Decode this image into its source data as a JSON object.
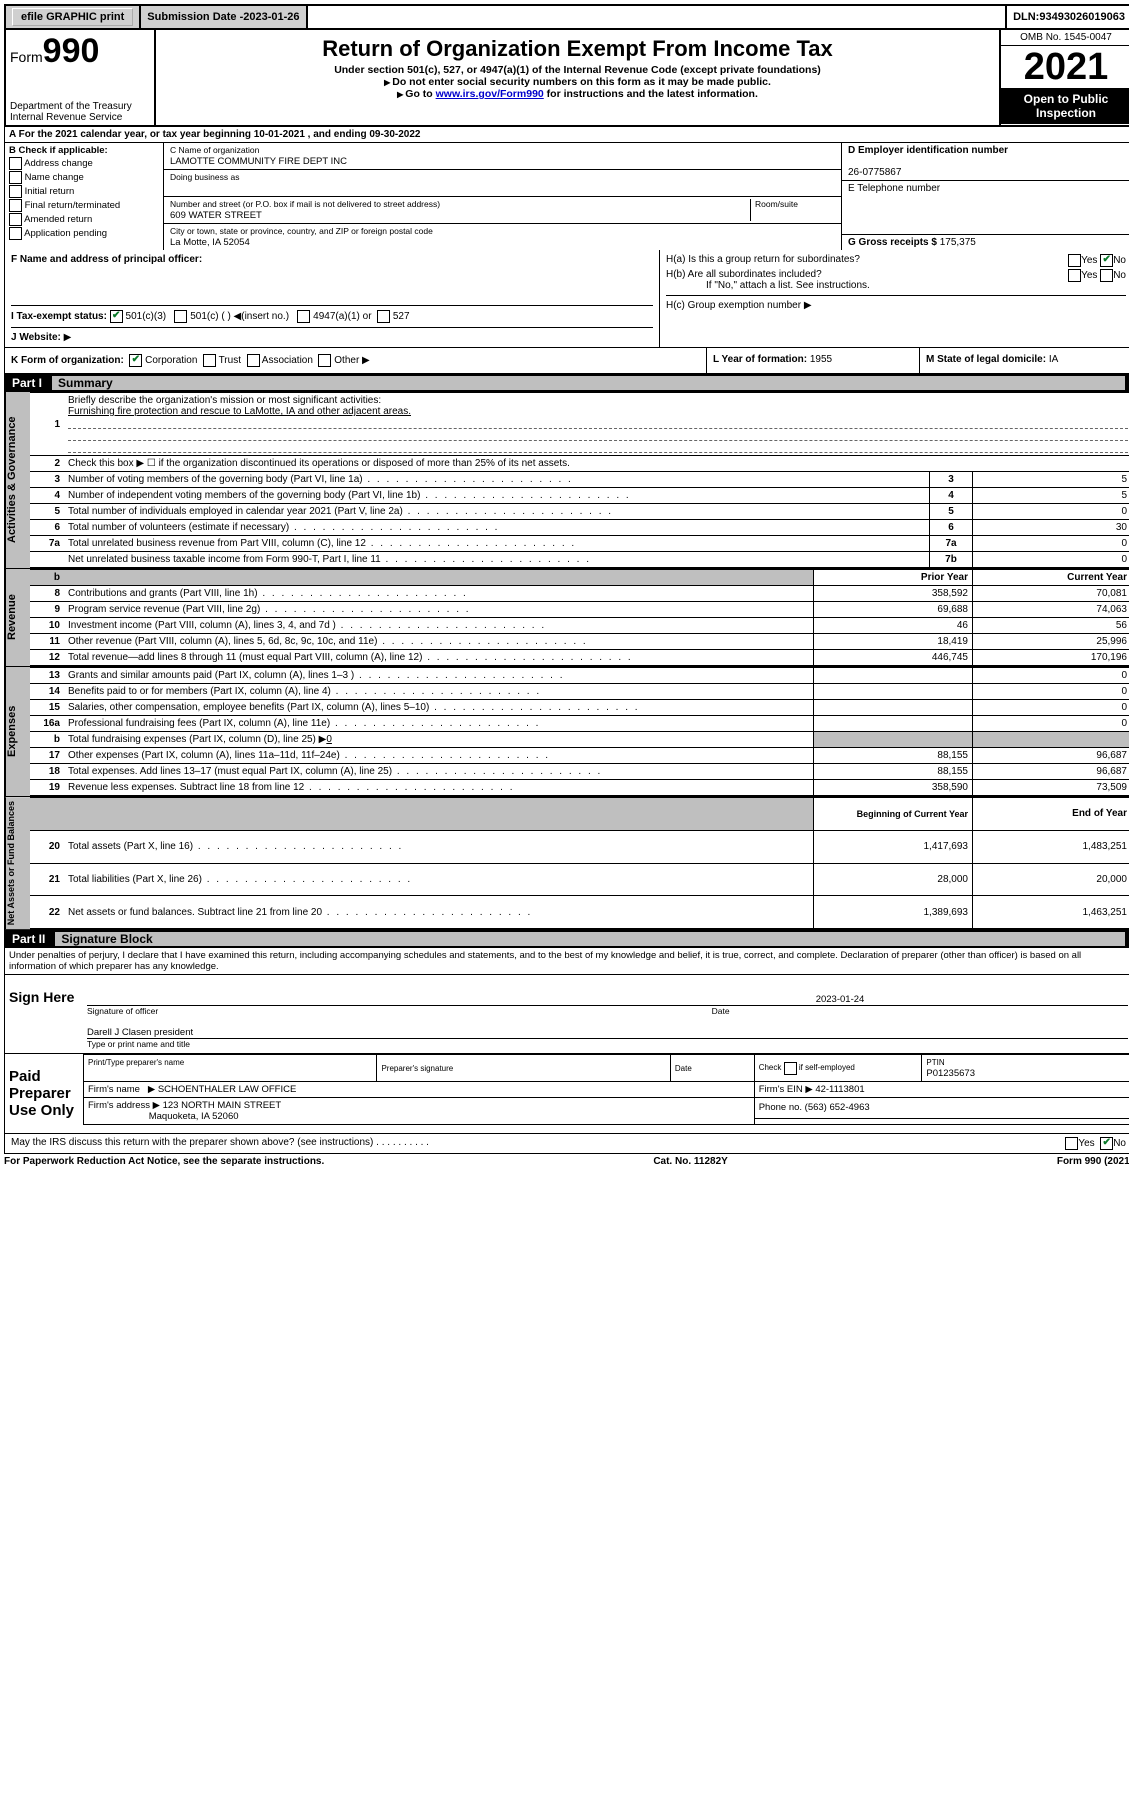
{
  "topbar": {
    "efile": "efile GRAPHIC print",
    "submission_label": "Submission Date - ",
    "submission_date": "2023-01-26",
    "dln_label": "DLN: ",
    "dln": "93493026019063"
  },
  "header": {
    "form_prefix": "Form",
    "form_num": "990",
    "dept": "Department of the Treasury",
    "irs": "Internal Revenue Service",
    "title": "Return of Organization Exempt From Income Tax",
    "subtitle": "Under section 501(c), 527, or 4947(a)(1) of the Internal Revenue Code (except private foundations)",
    "note1": "Do not enter social security numbers on this form as it may be made public.",
    "note2_pre": "Go to ",
    "note2_link": "www.irs.gov/Form990",
    "note2_post": " for instructions and the latest information.",
    "omb": "OMB No. 1545-0047",
    "year": "2021",
    "inspect": "Open to Public Inspection"
  },
  "rowA": "For the 2021 calendar year, or tax year beginning 10-01-2021   , and ending 09-30-2022",
  "colB": {
    "title": "B Check if applicable:",
    "items": [
      "Address change",
      "Name change",
      "Initial return",
      "Final return/terminated",
      "Amended return",
      "Application pending"
    ]
  },
  "colC": {
    "name_label": "C Name of organization",
    "name": "LAMOTTE COMMUNITY FIRE DEPT INC",
    "dba_label": "Doing business as",
    "dba": "",
    "addr_label": "Number and street (or P.O. box if mail is not delivered to street address)",
    "room_label": "Room/suite",
    "addr": "609 WATER STREET",
    "city_label": "City or town, state or province, country, and ZIP or foreign postal code",
    "city": "La Motte, IA  52054"
  },
  "colD": {
    "ein_label": "D Employer identification number",
    "ein": "26-0775867",
    "phone_label": "E Telephone number",
    "phone": "",
    "gross_label": "G Gross receipts $ ",
    "gross": "175,375"
  },
  "rowF": {
    "label": "F  Name and address of principal officer:",
    "value": ""
  },
  "rowH": {
    "ha": "H(a)  Is this a group return for subordinates?",
    "hb": "H(b)  Are all subordinates included?",
    "hb_note": "If \"No,\" attach a list. See instructions.",
    "hc": "H(c)  Group exemption number",
    "yes": "Yes",
    "no": "No"
  },
  "rowI": {
    "label": "I   Tax-exempt status:",
    "opts": [
      "501(c)(3)",
      "501(c) (   ) ◀(insert no.)",
      "4947(a)(1) or",
      "527"
    ]
  },
  "rowJ": {
    "label": "J   Website:",
    "arrow": "▶"
  },
  "rowK": {
    "label": "K Form of organization:",
    "opts": [
      "Corporation",
      "Trust",
      "Association",
      "Other"
    ],
    "l": "L Year of formation: ",
    "l_val": "1955",
    "m": "M State of legal domicile: ",
    "m_val": "IA"
  },
  "part1": {
    "part": "Part I",
    "title": "Summary"
  },
  "gov": {
    "label": "Activities & Governance",
    "q1_label": "1",
    "q1": "Briefly describe the organization's mission or most significant activities:",
    "q1_text": "Furnishing fire protection and rescue to LaMotte, IA and other adjacent areas.",
    "q2_label": "2",
    "q2": "Check this box ▶ ☐  if the organization discontinued its operations or disposed of more than 25% of its net assets.",
    "rows": [
      {
        "n": "3",
        "d": "Number of voting members of the governing body (Part VI, line 1a)",
        "b": "3",
        "v": "5"
      },
      {
        "n": "4",
        "d": "Number of independent voting members of the governing body (Part VI, line 1b)",
        "b": "4",
        "v": "5"
      },
      {
        "n": "5",
        "d": "Total number of individuals employed in calendar year 2021 (Part V, line 2a)",
        "b": "5",
        "v": "0"
      },
      {
        "n": "6",
        "d": "Total number of volunteers (estimate if necessary)",
        "b": "6",
        "v": "30"
      },
      {
        "n": "7a",
        "d": "Total unrelated business revenue from Part VIII, column (C), line 12",
        "b": "7a",
        "v": "0"
      },
      {
        "n": "",
        "d": "Net unrelated business taxable income from Form 990-T, Part I, line 11",
        "b": "7b",
        "v": "0"
      }
    ]
  },
  "rev": {
    "label": "Revenue",
    "b_hdr": "b",
    "prior_hdr": "Prior Year",
    "cur_hdr": "Current Year",
    "rows": [
      {
        "n": "8",
        "d": "Contributions and grants (Part VIII, line 1h)",
        "p": "358,592",
        "c": "70,081"
      },
      {
        "n": "9",
        "d": "Program service revenue (Part VIII, line 2g)",
        "p": "69,688",
        "c": "74,063"
      },
      {
        "n": "10",
        "d": "Investment income (Part VIII, column (A), lines 3, 4, and 7d )",
        "p": "46",
        "c": "56"
      },
      {
        "n": "11",
        "d": "Other revenue (Part VIII, column (A), lines 5, 6d, 8c, 9c, 10c, and 11e)",
        "p": "18,419",
        "c": "25,996"
      },
      {
        "n": "12",
        "d": "Total revenue—add lines 8 through 11 (must equal Part VIII, column (A), line 12)",
        "p": "446,745",
        "c": "170,196"
      }
    ]
  },
  "exp": {
    "label": "Expenses",
    "rows": [
      {
        "n": "13",
        "d": "Grants and similar amounts paid (Part IX, column (A), lines 1–3 )",
        "p": "",
        "c": "0"
      },
      {
        "n": "14",
        "d": "Benefits paid to or for members (Part IX, column (A), line 4)",
        "p": "",
        "c": "0"
      },
      {
        "n": "15",
        "d": "Salaries, other compensation, employee benefits (Part IX, column (A), lines 5–10)",
        "p": "",
        "c": "0"
      },
      {
        "n": "16a",
        "d": "Professional fundraising fees (Part IX, column (A), line 11e)",
        "p": "",
        "c": "0"
      }
    ],
    "row_b": {
      "n": "b",
      "d": "Total fundraising expenses (Part IX, column (D), line 25) ▶",
      "v": "0"
    },
    "rows2": [
      {
        "n": "17",
        "d": "Other expenses (Part IX, column (A), lines 11a–11d, 11f–24e)",
        "p": "88,155",
        "c": "96,687"
      },
      {
        "n": "18",
        "d": "Total expenses. Add lines 13–17 (must equal Part IX, column (A), line 25)",
        "p": "88,155",
        "c": "96,687"
      },
      {
        "n": "19",
        "d": "Revenue less expenses. Subtract line 18 from line 12",
        "p": "358,590",
        "c": "73,509"
      }
    ]
  },
  "net": {
    "label": "Net Assets or Fund Balances",
    "begin_hdr": "Beginning of Current Year",
    "end_hdr": "End of Year",
    "rows": [
      {
        "n": "20",
        "d": "Total assets (Part X, line 16)",
        "p": "1,417,693",
        "c": "1,483,251"
      },
      {
        "n": "21",
        "d": "Total liabilities (Part X, line 26)",
        "p": "28,000",
        "c": "20,000"
      },
      {
        "n": "22",
        "d": "Net assets or fund balances. Subtract line 21 from line 20",
        "p": "1,389,693",
        "c": "1,463,251"
      }
    ]
  },
  "part2": {
    "part": "Part II",
    "title": "Signature Block",
    "decl": "Under penalties of perjury, I declare that I have examined this return, including accompanying schedules and statements, and to the best of my knowledge and belief, it is true, correct, and complete. Declaration of preparer (other than officer) is based on all information of which preparer has any knowledge."
  },
  "sign": {
    "label": "Sign Here",
    "sig_label": "Signature of officer",
    "date_label": "Date",
    "date": "2023-01-24",
    "name": "Darell J Clasen  president",
    "name_label": "Type or print name and title"
  },
  "prep": {
    "label": "Paid Preparer Use Only",
    "h1": "Print/Type preparer's name",
    "h2": "Preparer's signature",
    "h3": "Date",
    "h4_pre": "Check",
    "h4_post": "if self-employed",
    "h5": "PTIN",
    "ptin": "P01235673",
    "firm_label": "Firm's name",
    "firm": "SCHOENTHALER LAW OFFICE",
    "ein_label": "Firm's EIN",
    "ein": "42-1113801",
    "addr_label": "Firm's address",
    "addr1": "123 NORTH MAIN STREET",
    "addr2": "Maquoketa, IA  52060",
    "phone_label": "Phone no.",
    "phone": "(563) 652-4963"
  },
  "discuss": {
    "q": "May the IRS discuss this return with the preparer shown above? (see instructions)",
    "yes": "Yes",
    "no": "No"
  },
  "footer": {
    "left": "For Paperwork Reduction Act Notice, see the separate instructions.",
    "mid": "Cat. No. 11282Y",
    "right_pre": "Form ",
    "right_b": "990",
    "right_post": " (2021)"
  }
}
